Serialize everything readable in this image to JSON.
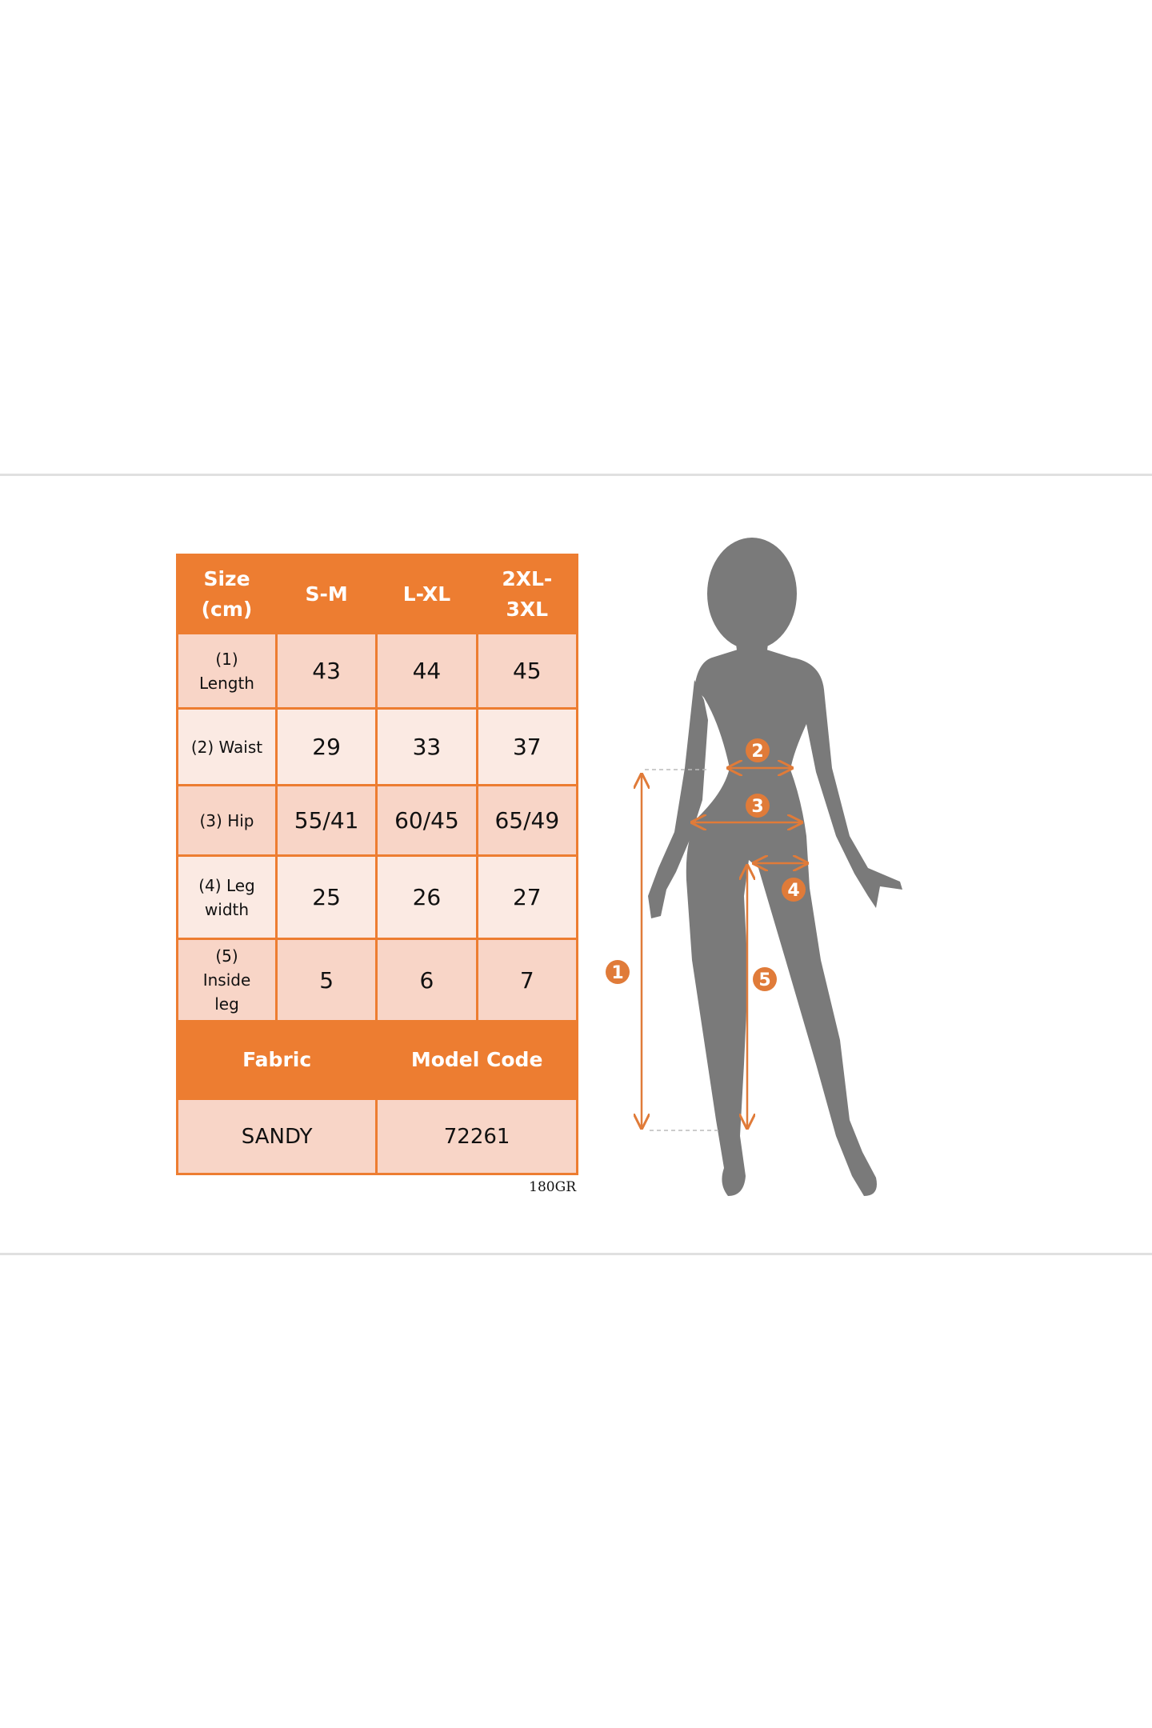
{
  "size_table": {
    "header": [
      "Size\n(cm)",
      "S-M",
      "L-XL",
      "2XL-\n3XL"
    ],
    "header_lines": [
      [
        "Size",
        "(cm)"
      ],
      [
        "S-M"
      ],
      [
        "L-XL"
      ],
      [
        "2XL-",
        "3XL"
      ]
    ],
    "rows": [
      {
        "label_lines": [
          "(1)",
          "Length"
        ],
        "values": [
          "43",
          "44",
          "45"
        ]
      },
      {
        "label_lines": [
          "(2) Waist"
        ],
        "values": [
          "29",
          "33",
          "37"
        ]
      },
      {
        "label_lines": [
          "(3) Hip"
        ],
        "values": [
          "55/41",
          "60/45",
          "65/49"
        ]
      },
      {
        "label_lines": [
          "(4) Leg",
          "width"
        ],
        "values": [
          "25",
          "26",
          "27"
        ]
      },
      {
        "label_lines": [
          "(5)",
          "Inside",
          "leg"
        ],
        "values": [
          "5",
          "6",
          "7"
        ]
      }
    ],
    "info_header": [
      "Fabric",
      "Model Code"
    ],
    "info_values": [
      "SANDY",
      "72261"
    ]
  },
  "fabric_weight": "180GR",
  "figure": {
    "badges": [
      "1",
      "2",
      "3",
      "4",
      "5"
    ]
  },
  "colors": {
    "accent": "#ED7D31",
    "row_dark": "#F8D5C7",
    "row_light": "#FBEAE3",
    "silhouette": "#7a7a7a"
  }
}
